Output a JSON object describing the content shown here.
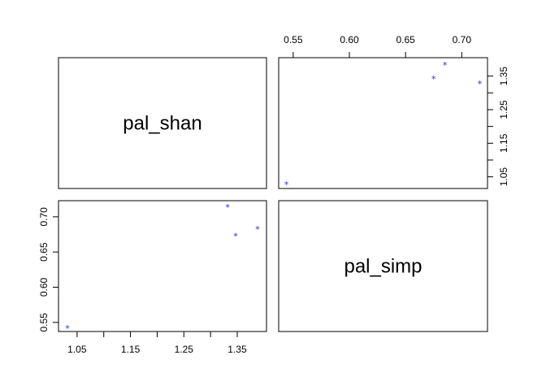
{
  "chart_data": {
    "type": "scatter",
    "variables": [
      "pal_shan",
      "pal_simp"
    ],
    "points": [
      {
        "pal_shan": 1.032,
        "pal_simp": 0.544
      },
      {
        "pal_shan": 1.332,
        "pal_simp": 0.716
      },
      {
        "pal_shan": 1.347,
        "pal_simp": 0.675
      },
      {
        "pal_shan": 1.388,
        "pal_simp": 0.685
      }
    ],
    "marker": "*",
    "marker_color": "#2a2ad0",
    "axes": {
      "pal_shan": {
        "ticks": [
          1.05,
          1.15,
          1.25,
          1.35
        ],
        "tick_labels": [
          "1.05",
          "1.15",
          "1.25",
          "1.35"
        ],
        "lim": [
          1.0152,
          1.4048
        ]
      },
      "pal_simp": {
        "ticks": [
          0.55,
          0.6,
          0.65,
          0.7
        ],
        "tick_labels": [
          "0.55",
          "0.60",
          "0.65",
          "0.70"
        ],
        "lim": [
          0.5371,
          0.7229
        ]
      }
    },
    "grid": false
  }
}
